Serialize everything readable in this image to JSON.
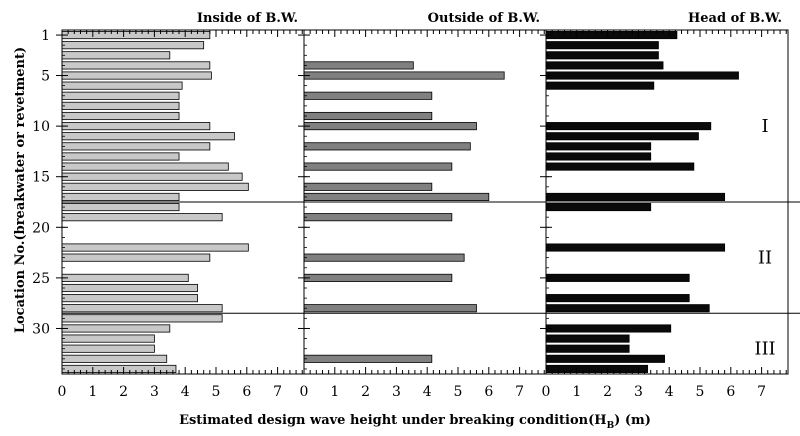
{
  "chart_data": {
    "type": "bar",
    "orientation": "horizontal",
    "xlabel": "Estimated design wave height under breaking condition(H",
    "xlabel_sub": "B",
    "xlabel_end": ") (m)",
    "ylabel": "Location No.(breakwater or revetment)",
    "xlim": [
      0,
      8
    ],
    "x_ticks": [
      "0",
      "1",
      "2",
      "3",
      "4",
      "5",
      "6",
      "7"
    ],
    "ylim": [
      0.5,
      34.5
    ],
    "y_ticks": [
      {
        "value": 1,
        "label": "1"
      },
      {
        "value": 5,
        "label": "5"
      },
      {
        "value": 10,
        "label": "10"
      },
      {
        "value": 15,
        "label": "15"
      },
      {
        "value": 20,
        "label": "20"
      },
      {
        "value": 25,
        "label": "25"
      },
      {
        "value": 30,
        "label": "30"
      }
    ],
    "group_dividers": [
      17.5,
      28.5
    ],
    "groups": [
      {
        "label": "I",
        "y": 10
      },
      {
        "label": "II",
        "y": 23
      },
      {
        "label": "III",
        "y": 32
      }
    ],
    "panels": [
      {
        "title": "Inside of B.W.",
        "color": "#c8c8c8",
        "bars": [
          {
            "loc": 1,
            "value": 4.8
          },
          {
            "loc": 2,
            "value": 4.6
          },
          {
            "loc": 3,
            "value": 3.5
          },
          {
            "loc": 4,
            "value": 4.8
          },
          {
            "loc": 5,
            "value": 4.85
          },
          {
            "loc": 6,
            "value": 3.9
          },
          {
            "loc": 7,
            "value": 3.8
          },
          {
            "loc": 8,
            "value": 3.8
          },
          {
            "loc": 9,
            "value": 3.8
          },
          {
            "loc": 10,
            "value": 4.8
          },
          {
            "loc": 11,
            "value": 5.6
          },
          {
            "loc": 12,
            "value": 4.8
          },
          {
            "loc": 13,
            "value": 3.8
          },
          {
            "loc": 14,
            "value": 5.4
          },
          {
            "loc": 15,
            "value": 5.85
          },
          {
            "loc": 16,
            "value": 6.05
          },
          {
            "loc": 17,
            "value": 3.8
          },
          {
            "loc": 18,
            "value": 3.8
          },
          {
            "loc": 19,
            "value": 5.2
          },
          {
            "loc": 22,
            "value": 6.05
          },
          {
            "loc": 23,
            "value": 4.8
          },
          {
            "loc": 25,
            "value": 4.1
          },
          {
            "loc": 26,
            "value": 4.4
          },
          {
            "loc": 27,
            "value": 4.4
          },
          {
            "loc": 28,
            "value": 5.2
          },
          {
            "loc": 29,
            "value": 5.2
          },
          {
            "loc": 30,
            "value": 3.5
          },
          {
            "loc": 31,
            "value": 3.0
          },
          {
            "loc": 32,
            "value": 3.0
          },
          {
            "loc": 33,
            "value": 3.4
          },
          {
            "loc": 34,
            "value": 3.7
          }
        ]
      },
      {
        "title": "Outside of B.W.",
        "color": "#808080",
        "bars": [
          {
            "loc": 4,
            "value": 3.55
          },
          {
            "loc": 5,
            "value": 6.5
          },
          {
            "loc": 7,
            "value": 4.15
          },
          {
            "loc": 9,
            "value": 4.15
          },
          {
            "loc": 10,
            "value": 5.6
          },
          {
            "loc": 12,
            "value": 5.4
          },
          {
            "loc": 14,
            "value": 4.8
          },
          {
            "loc": 16,
            "value": 4.15
          },
          {
            "loc": 17,
            "value": 6.0
          },
          {
            "loc": 19,
            "value": 4.8
          },
          {
            "loc": 23,
            "value": 5.2
          },
          {
            "loc": 25,
            "value": 4.8
          },
          {
            "loc": 28,
            "value": 5.6
          },
          {
            "loc": 33,
            "value": 4.15
          }
        ]
      },
      {
        "title": "Head of B.W.",
        "color": "#0a0a0a",
        "bars": [
          {
            "loc": 1,
            "value": 4.25
          },
          {
            "loc": 2,
            "value": 3.65
          },
          {
            "loc": 3,
            "value": 3.65
          },
          {
            "loc": 4,
            "value": 3.8
          },
          {
            "loc": 5,
            "value": 6.25
          },
          {
            "loc": 6,
            "value": 3.5
          },
          {
            "loc": 10,
            "value": 5.35
          },
          {
            "loc": 11,
            "value": 4.95
          },
          {
            "loc": 12,
            "value": 3.4
          },
          {
            "loc": 13,
            "value": 3.4
          },
          {
            "loc": 14,
            "value": 4.8
          },
          {
            "loc": 17,
            "value": 5.8
          },
          {
            "loc": 18,
            "value": 3.4
          },
          {
            "loc": 22,
            "value": 5.8
          },
          {
            "loc": 25,
            "value": 4.65
          },
          {
            "loc": 27,
            "value": 4.65
          },
          {
            "loc": 28,
            "value": 5.3
          },
          {
            "loc": 30,
            "value": 4.05
          },
          {
            "loc": 31,
            "value": 2.7
          },
          {
            "loc": 32,
            "value": 2.7
          },
          {
            "loc": 33,
            "value": 3.85
          },
          {
            "loc": 34,
            "value": 3.3
          }
        ]
      }
    ]
  }
}
